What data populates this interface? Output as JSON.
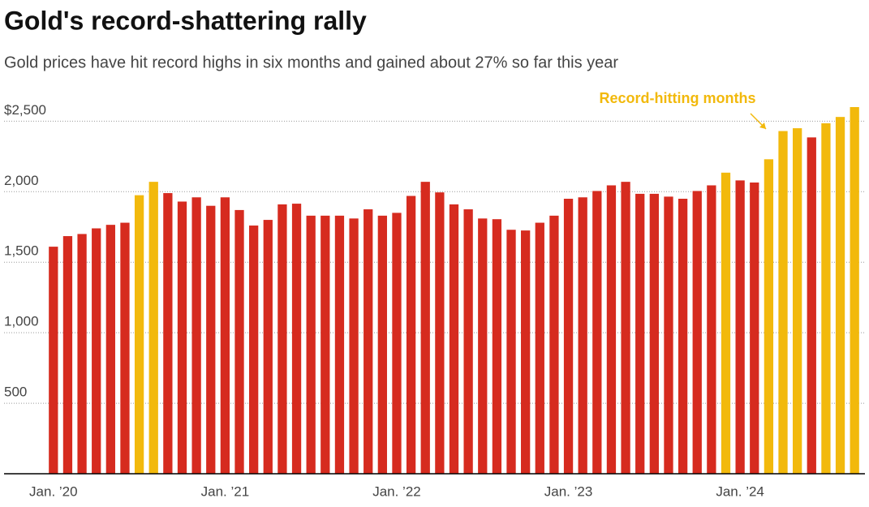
{
  "chart_data": {
    "type": "bar",
    "title": "Gold's record-shattering rally",
    "subtitle": "Gold prices have hit record highs in six months and gained about 27% so far this year",
    "annotation": "Record-hitting months",
    "categories": [
      "Jan. ’20",
      null,
      null,
      null,
      null,
      null,
      null,
      null,
      null,
      null,
      null,
      null,
      "Jan. ’21",
      null,
      null,
      null,
      null,
      null,
      null,
      null,
      null,
      null,
      null,
      null,
      "Jan. ’22",
      null,
      null,
      null,
      null,
      null,
      null,
      null,
      null,
      null,
      null,
      null,
      "Jan. ’23",
      null,
      null,
      null,
      null,
      null,
      null,
      null,
      null,
      null,
      null,
      null,
      "Jan. ’24",
      null,
      null,
      null,
      null,
      null,
      null,
      null,
      null
    ],
    "values": [
      1610,
      1685,
      1700,
      1740,
      1765,
      1780,
      1975,
      2070,
      1990,
      1930,
      1960,
      1900,
      1960,
      1870,
      1760,
      1800,
      1910,
      1915,
      1830,
      1830,
      1830,
      1810,
      1875,
      1830,
      1850,
      1970,
      2070,
      1995,
      1910,
      1875,
      1810,
      1805,
      1730,
      1725,
      1780,
      1830,
      1950,
      1960,
      2005,
      2045,
      2070,
      1985,
      1985,
      1965,
      1950,
      2005,
      2045,
      2135,
      2080,
      2065,
      2230,
      2430,
      2450,
      2385,
      2485,
      2530,
      2600
    ],
    "colors": [
      "#d62b1f",
      "#d62b1f",
      "#d62b1f",
      "#d62b1f",
      "#d62b1f",
      "#d62b1f",
      "#f2b90c",
      "#f2b90c",
      "#d62b1f",
      "#d62b1f",
      "#d62b1f",
      "#d62b1f",
      "#d62b1f",
      "#d62b1f",
      "#d62b1f",
      "#d62b1f",
      "#d62b1f",
      "#d62b1f",
      "#d62b1f",
      "#d62b1f",
      "#d62b1f",
      "#d62b1f",
      "#d62b1f",
      "#d62b1f",
      "#d62b1f",
      "#d62b1f",
      "#d62b1f",
      "#d62b1f",
      "#d62b1f",
      "#d62b1f",
      "#d62b1f",
      "#d62b1f",
      "#d62b1f",
      "#d62b1f",
      "#d62b1f",
      "#d62b1f",
      "#d62b1f",
      "#d62b1f",
      "#d62b1f",
      "#d62b1f",
      "#d62b1f",
      "#d62b1f",
      "#d62b1f",
      "#d62b1f",
      "#d62b1f",
      "#d62b1f",
      "#d62b1f",
      "#f2b90c",
      "#d62b1f",
      "#d62b1f",
      "#f2b90c",
      "#f2b90c",
      "#f2b90c",
      "#d62b1f",
      "#f2b90c",
      "#f2b90c",
      "#f2b90c"
    ],
    "ylim": [
      0,
      2600
    ],
    "yticks": [
      500,
      {
        "value": 1000,
        "label": "1,000"
      },
      {
        "value": 1500,
        "label": "1,500"
      },
      {
        "value": 2000,
        "label": "2,000"
      },
      {
        "value": 2500,
        "label": "$2,500"
      }
    ],
    "grid": true
  }
}
